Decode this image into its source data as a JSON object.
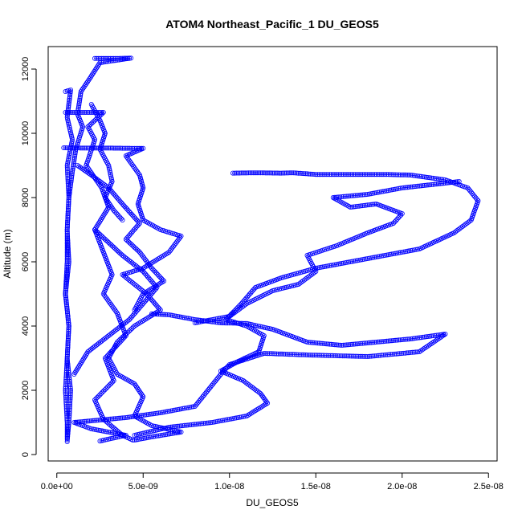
{
  "chart_data": {
    "type": "scatter",
    "title": "ATOM4 Northeast_Pacific_1 DU_GEOS5",
    "xlabel": "DU_GEOS5",
    "ylabel": "Altitude (m)",
    "xlim": [
      -5e-10,
      2.55e-08
    ],
    "ylim": [
      -200,
      12700
    ],
    "x_ticks": [
      0,
      5e-09,
      1e-08,
      1.5e-08,
      2e-08,
      2.5e-08
    ],
    "x_tick_labels": [
      "0.0e+00",
      "5.0e-09",
      "1.0e-08",
      "1.5e-08",
      "2.0e-08",
      "2.5e-08"
    ],
    "y_ticks": [
      0,
      2000,
      4000,
      6000,
      8000,
      10000,
      12000
    ],
    "y_tick_labels": [
      "0",
      "2000",
      "4000",
      "6000",
      "8000",
      "10000",
      "12000"
    ],
    "grid": false,
    "marker": "open-circle",
    "color": "#0000ff",
    "series": [
      {
        "values": [
          [
            2.2e-09,
            12330
          ],
          [
            3.2e-09,
            12330
          ],
          [
            4.3e-09,
            12340
          ],
          [
            2.5e-09,
            12200
          ],
          [
            1.9e-09,
            11700
          ],
          [
            1.4e-09,
            11300
          ],
          [
            1.2e-09,
            10600
          ],
          [
            1.5e-09,
            10200
          ],
          [
            1.1e-09,
            9500
          ],
          [
            9e-10,
            8800
          ],
          [
            7e-10,
            8000
          ],
          [
            6e-10,
            7000
          ],
          [
            7e-10,
            6000
          ],
          [
            5e-10,
            5000
          ],
          [
            7e-10,
            4000
          ],
          [
            6e-10,
            3000
          ],
          [
            5e-10,
            2000
          ],
          [
            6e-10,
            1000
          ],
          [
            6e-10,
            500
          ]
        ]
      },
      {
        "values": [
          [
            5e-10,
            11300
          ],
          [
            8e-10,
            11350
          ],
          [
            6e-10,
            10500
          ],
          [
            9e-10,
            9800
          ],
          [
            6e-10,
            9000
          ],
          [
            7e-10,
            8000
          ],
          [
            6e-10,
            7000
          ],
          [
            6e-10,
            6000
          ],
          [
            5e-10,
            5000
          ],
          [
            7e-10,
            4000
          ],
          [
            6e-10,
            3000
          ],
          [
            8e-10,
            2000
          ],
          [
            7e-10,
            1000
          ],
          [
            6e-10,
            400
          ]
        ]
      },
      {
        "values": [
          [
            5e-10,
            10650
          ],
          [
            1.5e-09,
            10650
          ],
          [
            2.7e-09,
            10650
          ],
          [
            1.8e-09,
            10200
          ],
          [
            2.2e-09,
            9800
          ],
          [
            1.7e-09,
            9000
          ],
          [
            2.6e-09,
            8300
          ],
          [
            3e-09,
            7700
          ],
          [
            2.2e-09,
            7000
          ],
          [
            2.7e-09,
            6300
          ],
          [
            3.2e-09,
            5600
          ],
          [
            2.7e-09,
            5000
          ],
          [
            3.5e-09,
            4400
          ],
          [
            4e-09,
            3700
          ],
          [
            2.8e-09,
            3000
          ],
          [
            3.3e-09,
            2300
          ],
          [
            2.2e-09,
            1700
          ],
          [
            2.7e-09,
            1100
          ],
          [
            3.8e-09,
            600
          ],
          [
            4.4e-09,
            450
          ]
        ]
      },
      {
        "values": [
          [
            4e-10,
            9550
          ],
          [
            1.5e-09,
            9540
          ],
          [
            3e-09,
            9540
          ],
          [
            5e-09,
            9530
          ],
          [
            4e-09,
            9300
          ],
          [
            4.8e-09,
            8700
          ],
          [
            5e-09,
            8300
          ],
          [
            4.7e-09,
            7800
          ],
          [
            5e-09,
            7300
          ],
          [
            6e-09,
            7000
          ],
          [
            7.2e-09,
            6800
          ],
          [
            6.5e-09,
            6300
          ],
          [
            5e-09,
            5800
          ],
          [
            3.8e-09,
            5600
          ],
          [
            5.2e-09,
            5000
          ],
          [
            6e-09,
            4500
          ],
          [
            4.5e-09,
            4000
          ],
          [
            3.5e-09,
            3500
          ],
          [
            3e-09,
            3000
          ],
          [
            3.5e-09,
            2500
          ],
          [
            4.5e-09,
            2200
          ],
          [
            5e-09,
            1800
          ],
          [
            4.5e-09,
            1200
          ],
          [
            5.5e-09,
            900
          ],
          [
            7.2e-09,
            700
          ],
          [
            5.5e-09,
            550
          ],
          [
            4.5e-09,
            450
          ]
        ]
      },
      {
        "values": [
          [
            1.02e-08,
            8760
          ],
          [
            1.15e-08,
            8770
          ],
          [
            1.3e-08,
            8760
          ],
          [
            1.37e-08,
            8770
          ],
          [
            1.5e-08,
            8720
          ],
          [
            1.7e-08,
            8720
          ],
          [
            1.9e-08,
            8720
          ],
          [
            2.05e-08,
            8700
          ],
          [
            2.25e-08,
            8550
          ],
          [
            2.38e-08,
            8300
          ],
          [
            2.44e-08,
            7900
          ],
          [
            2.4e-08,
            7300
          ],
          [
            2.3e-08,
            6900
          ],
          [
            2.1e-08,
            6400
          ],
          [
            1.8e-08,
            6100
          ],
          [
            1.5e-08,
            5800
          ],
          [
            1.3e-08,
            5500
          ],
          [
            1.15e-08,
            5200
          ],
          [
            1.07e-08,
            4700
          ],
          [
            9.8e-09,
            4200
          ],
          [
            1.1e-08,
            4000
          ],
          [
            1.2e-08,
            3700
          ],
          [
            1.17e-08,
            3200
          ],
          [
            1.05e-08,
            2900
          ],
          [
            9.5e-09,
            2600
          ],
          [
            1.08e-08,
            2300
          ],
          [
            1.18e-08,
            1900
          ],
          [
            1.22e-08,
            1600
          ],
          [
            1.1e-08,
            1200
          ],
          [
            9e-09,
            1000
          ],
          [
            6.5e-09,
            850
          ],
          [
            4.5e-09,
            600
          ]
        ]
      },
      {
        "values": [
          [
            5.5e-09,
            4380
          ],
          [
            6.5e-09,
            4350
          ],
          [
            8e-09,
            4200
          ],
          [
            9.5e-09,
            4100
          ],
          [
            1.1e-08,
            4080
          ],
          [
            1.25e-08,
            3900
          ],
          [
            1.45e-08,
            3500
          ],
          [
            1.65e-08,
            3400
          ],
          [
            1.85e-08,
            3500
          ],
          [
            2.05e-08,
            3600
          ],
          [
            2.25e-08,
            3750
          ],
          [
            2.1e-08,
            3200
          ],
          [
            1.8e-08,
            3050
          ],
          [
            1.45e-08,
            3100
          ],
          [
            1.2e-08,
            3150
          ],
          [
            1e-08,
            2800
          ],
          [
            9.5e-09,
            2500
          ],
          [
            8e-09,
            1500
          ],
          [
            6e-09,
            1300
          ],
          [
            4e-09,
            1150
          ],
          [
            2e-09,
            1050
          ],
          [
            1e-09,
            1000
          ],
          [
            2e-09,
            800
          ],
          [
            4e-09,
            600
          ],
          [
            2.5e-09,
            420
          ]
        ]
      },
      {
        "values": [
          [
            8e-09,
            4100
          ],
          [
            1e-08,
            4300
          ],
          [
            1.1e-08,
            4700
          ],
          [
            1.25e-08,
            5100
          ],
          [
            1.4e-08,
            5300
          ],
          [
            1.5e-08,
            5700
          ],
          [
            1.45e-08,
            6200
          ],
          [
            1.62e-08,
            6500
          ],
          [
            1.8e-08,
            6900
          ],
          [
            1.95e-08,
            7200
          ],
          [
            2e-08,
            7500
          ],
          [
            1.85e-08,
            7800
          ],
          [
            1.7e-08,
            7700
          ],
          [
            1.6e-08,
            8000
          ],
          [
            1.8e-08,
            8100
          ],
          [
            2e-08,
            8300
          ],
          [
            2.25e-08,
            8450
          ],
          [
            2.33e-08,
            8500
          ]
        ]
      },
      {
        "values": [
          [
            4.5e-09,
            4500
          ],
          [
            5e-09,
            5000
          ],
          [
            6.2e-09,
            5400
          ],
          [
            5.5e-09,
            5800
          ],
          [
            4.8e-09,
            6300
          ],
          [
            4e-09,
            6700
          ],
          [
            4.8e-09,
            7200
          ],
          [
            3.8e-09,
            7800
          ],
          [
            3e-09,
            8300
          ],
          [
            2e-09,
            8700
          ],
          [
            1.2e-09,
            9000
          ]
        ]
      },
      {
        "values": [
          [
            1e-09,
            2500
          ],
          [
            1.8e-09,
            3200
          ],
          [
            3e-09,
            3700
          ],
          [
            4.2e-09,
            4200
          ],
          [
            5e-09,
            4700
          ],
          [
            5.8e-09,
            5200
          ],
          [
            5e-09,
            5700
          ],
          [
            3.8e-09,
            6200
          ],
          [
            3e-09,
            6600
          ],
          [
            2.2e-09,
            7000
          ]
        ]
      },
      {
        "values": [
          [
            2e-09,
            10900
          ],
          [
            2.5e-09,
            10400
          ],
          [
            2.8e-09,
            10000
          ],
          [
            2.5e-09,
            9500
          ],
          [
            3e-09,
            9000
          ],
          [
            3.2e-09,
            8500
          ],
          [
            2.8e-09,
            8000
          ],
          [
            3.3e-09,
            7600
          ],
          [
            3.8e-09,
            7300
          ]
        ]
      }
    ]
  }
}
